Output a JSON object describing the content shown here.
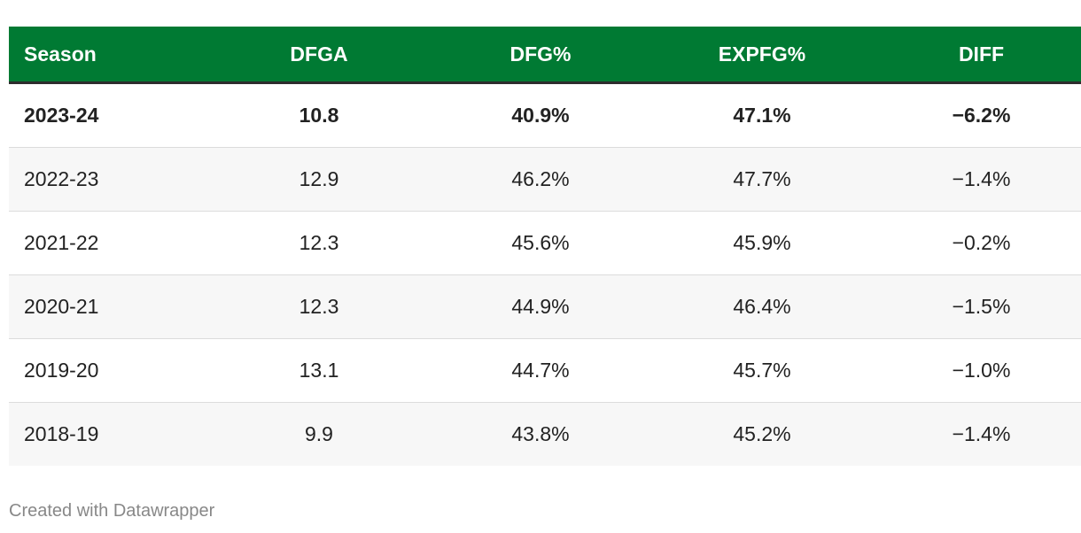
{
  "colors": {
    "header_bg": "#007A33",
    "header_text": "#ffffff",
    "stripe_bg": "#f7f7f7"
  },
  "chart_data": {
    "type": "table",
    "columns": [
      "Season",
      "DFGA",
      "DFG%",
      "EXPFG%",
      "DIFF"
    ],
    "rows": [
      [
        "2023-24",
        "10.8",
        "40.9%",
        "47.1%",
        "−6.2%"
      ],
      [
        "2022-23",
        "12.9",
        "46.2%",
        "47.7%",
        "−1.4%"
      ],
      [
        "2021-22",
        "12.3",
        "45.6%",
        "45.9%",
        "−0.2%"
      ],
      [
        "2020-21",
        "12.3",
        "44.9%",
        "46.4%",
        "−1.5%"
      ],
      [
        "2019-20",
        "13.1",
        "44.7%",
        "45.7%",
        "−1.0%"
      ],
      [
        "2018-19",
        "9.9",
        "43.8%",
        "45.2%",
        "−1.4%"
      ]
    ],
    "highlighted_row": 0
  },
  "footer": {
    "credit": "Created with Datawrapper"
  }
}
